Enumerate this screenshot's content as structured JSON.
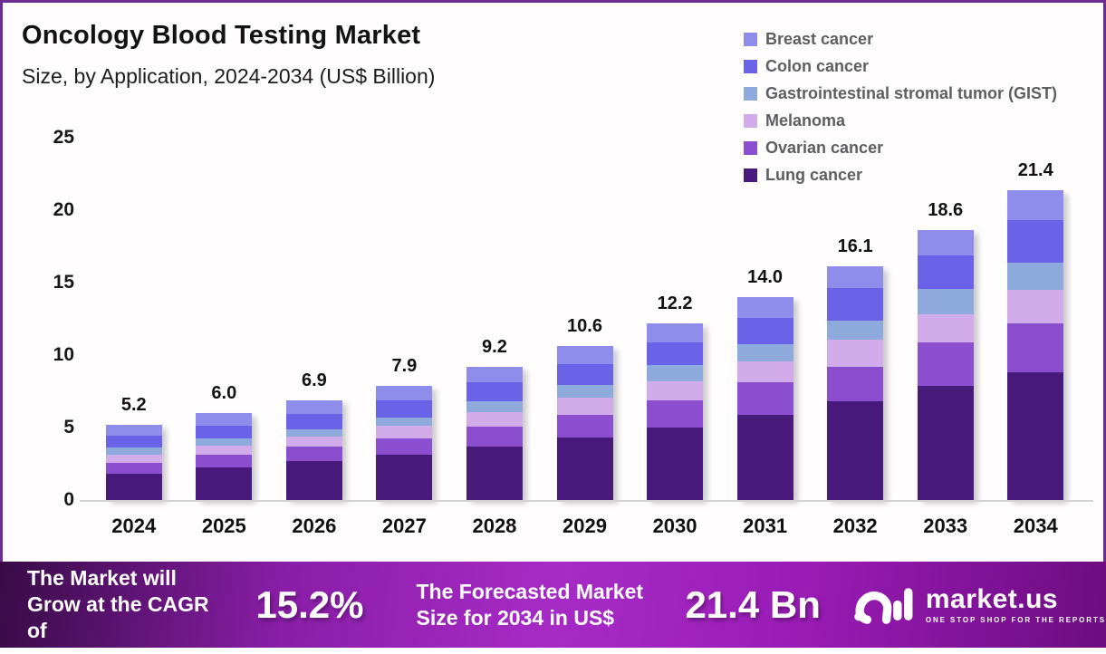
{
  "header": {
    "title": "Oncology Blood Testing Market",
    "subtitle": "Size, by Application, 2024-2034 (US$ Billion)"
  },
  "chart_data": {
    "type": "bar",
    "stacked": true,
    "title": "Oncology Blood Testing Market",
    "subtitle": "Size, by Application, 2024-2034 (US$ Billion)",
    "unit": "US$ Billion",
    "categories": [
      "2024",
      "2025",
      "2026",
      "2027",
      "2028",
      "2029",
      "2030",
      "2031",
      "2032",
      "2033",
      "2034"
    ],
    "totals": [
      "5.2",
      "6.0",
      "6.9",
      "7.9",
      "9.2",
      "10.6",
      "12.2",
      "14.0",
      "16.1",
      "18.6",
      "21.4"
    ],
    "series": [
      {
        "name": "Lung cancer",
        "color": "#471a7c",
        "values": [
          1.8,
          2.25,
          2.7,
          3.1,
          3.7,
          4.3,
          5.0,
          5.9,
          6.8,
          7.9,
          8.8
        ]
      },
      {
        "name": "Ovarian cancer",
        "color": "#8b4ecf",
        "values": [
          0.75,
          0.85,
          1.0,
          1.15,
          1.35,
          1.6,
          1.9,
          2.2,
          2.4,
          3.0,
          3.4
        ]
      },
      {
        "name": "Melanoma",
        "color": "#d2abea",
        "values": [
          0.6,
          0.65,
          0.7,
          0.85,
          1.0,
          1.15,
          1.3,
          1.45,
          1.85,
          1.9,
          2.3
        ]
      },
      {
        "name": "Gastrointestinal stromal tumor (GIST)",
        "color": "#8ea9db",
        "values": [
          0.45,
          0.5,
          0.5,
          0.6,
          0.75,
          0.9,
          1.1,
          1.2,
          1.35,
          1.75,
          1.9
        ]
      },
      {
        "name": "Colon cancer",
        "color": "#6a63e8",
        "values": [
          0.85,
          0.9,
          1.05,
          1.2,
          1.3,
          1.45,
          1.6,
          1.8,
          2.2,
          2.3,
          2.9
        ]
      },
      {
        "name": "Breast cancer",
        "color": "#8e8deb",
        "values": [
          0.75,
          0.85,
          0.95,
          1.0,
          1.1,
          1.2,
          1.3,
          1.45,
          1.5,
          1.75,
          2.1
        ]
      }
    ],
    "legend_order_top_to_bottom": [
      "Breast cancer",
      "Colon cancer",
      "Gastrointestinal stromal tumor (GIST)",
      "Melanoma",
      "Ovarian cancer",
      "Lung cancer"
    ],
    "legend_position": "top-right",
    "yticks": [
      0,
      5,
      10,
      15,
      20,
      25
    ],
    "ylim": [
      0,
      25
    ],
    "grid": false
  },
  "banner": {
    "cagr_caption": "The Market will Grow at the CAGR of",
    "cagr_value": "15.2%",
    "forecast_caption": "The Forecasted Market Size for 2034 in US$",
    "forecast_value": "21.4 Bn",
    "logo_text": "market.us",
    "logo_tagline": "ONE STOP SHOP FOR THE REPORTS"
  },
  "colors": {
    "panel_border": "#6e2b92",
    "axis_line": "#d2d2d2",
    "title_text": "#121212",
    "legend_text": "#5d5d62",
    "banner_gradient": [
      "#380b47",
      "#a62bc5",
      "#6d0c81"
    ]
  }
}
